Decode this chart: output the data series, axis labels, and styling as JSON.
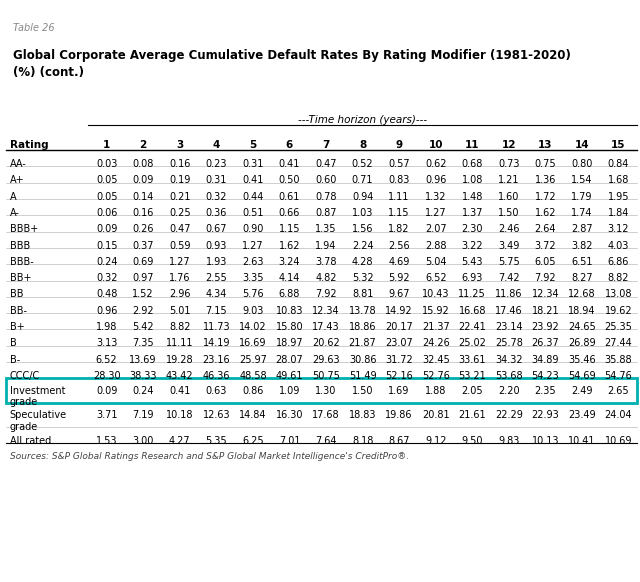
{
  "table_label": "Table 26",
  "title": "Global Corporate Average Cumulative Default Rates By Rating Modifier (1981-2020)\n(%) (cont.)",
  "time_horizon_label": "---Time horizon (years)---",
  "columns": [
    "Rating",
    "1",
    "2",
    "3",
    "4",
    "5",
    "6",
    "7",
    "8",
    "9",
    "10",
    "11",
    "12",
    "13",
    "14",
    "15"
  ],
  "rows": [
    [
      "AA-",
      "0.03",
      "0.08",
      "0.16",
      "0.23",
      "0.31",
      "0.41",
      "0.47",
      "0.52",
      "0.57",
      "0.62",
      "0.68",
      "0.73",
      "0.75",
      "0.80",
      "0.84"
    ],
    [
      "A+",
      "0.05",
      "0.09",
      "0.19",
      "0.31",
      "0.41",
      "0.50",
      "0.60",
      "0.71",
      "0.83",
      "0.96",
      "1.08",
      "1.21",
      "1.36",
      "1.54",
      "1.68"
    ],
    [
      "A",
      "0.05",
      "0.14",
      "0.21",
      "0.32",
      "0.44",
      "0.61",
      "0.78",
      "0.94",
      "1.11",
      "1.32",
      "1.48",
      "1.60",
      "1.72",
      "1.79",
      "1.95"
    ],
    [
      "A-",
      "0.06",
      "0.16",
      "0.25",
      "0.36",
      "0.51",
      "0.66",
      "0.87",
      "1.03",
      "1.15",
      "1.27",
      "1.37",
      "1.50",
      "1.62",
      "1.74",
      "1.84"
    ],
    [
      "BBB+",
      "0.09",
      "0.26",
      "0.47",
      "0.67",
      "0.90",
      "1.15",
      "1.35",
      "1.56",
      "1.82",
      "2.07",
      "2.30",
      "2.46",
      "2.64",
      "2.87",
      "3.12"
    ],
    [
      "BBB",
      "0.15",
      "0.37",
      "0.59",
      "0.93",
      "1.27",
      "1.62",
      "1.94",
      "2.24",
      "2.56",
      "2.88",
      "3.22",
      "3.49",
      "3.72",
      "3.82",
      "4.03"
    ],
    [
      "BBB-",
      "0.24",
      "0.69",
      "1.27",
      "1.93",
      "2.63",
      "3.24",
      "3.78",
      "4.28",
      "4.69",
      "5.04",
      "5.43",
      "5.75",
      "6.05",
      "6.51",
      "6.86"
    ],
    [
      "BB+",
      "0.32",
      "0.97",
      "1.76",
      "2.55",
      "3.35",
      "4.14",
      "4.82",
      "5.32",
      "5.92",
      "6.52",
      "6.93",
      "7.42",
      "7.92",
      "8.27",
      "8.82"
    ],
    [
      "BB",
      "0.48",
      "1.52",
      "2.96",
      "4.34",
      "5.76",
      "6.88",
      "7.92",
      "8.81",
      "9.67",
      "10.43",
      "11.25",
      "11.86",
      "12.34",
      "12.68",
      "13.08"
    ],
    [
      "BB-",
      "0.96",
      "2.92",
      "5.01",
      "7.15",
      "9.03",
      "10.83",
      "12.34",
      "13.78",
      "14.92",
      "15.92",
      "16.68",
      "17.46",
      "18.21",
      "18.94",
      "19.62"
    ],
    [
      "B+",
      "1.98",
      "5.42",
      "8.82",
      "11.73",
      "14.02",
      "15.80",
      "17.43",
      "18.86",
      "20.17",
      "21.37",
      "22.41",
      "23.14",
      "23.92",
      "24.65",
      "25.35"
    ],
    [
      "B",
      "3.13",
      "7.35",
      "11.11",
      "14.19",
      "16.69",
      "18.97",
      "20.62",
      "21.87",
      "23.07",
      "24.26",
      "25.02",
      "25.78",
      "26.37",
      "26.89",
      "27.44"
    ],
    [
      "B-",
      "6.52",
      "13.69",
      "19.28",
      "23.16",
      "25.97",
      "28.07",
      "29.63",
      "30.86",
      "31.72",
      "32.45",
      "33.61",
      "34.32",
      "34.89",
      "35.46",
      "35.88"
    ],
    [
      "CCC/C",
      "28.30",
      "38.33",
      "43.42",
      "46.36",
      "48.58",
      "49.61",
      "50.75",
      "51.49",
      "52.16",
      "52.76",
      "53.21",
      "53.68",
      "54.23",
      "54.69",
      "54.76"
    ],
    [
      "Investment\ngrade",
      "0.09",
      "0.24",
      "0.41",
      "0.63",
      "0.86",
      "1.09",
      "1.30",
      "1.50",
      "1.69",
      "1.88",
      "2.05",
      "2.20",
      "2.35",
      "2.49",
      "2.65"
    ],
    [
      "Speculative\ngrade",
      "3.71",
      "7.19",
      "10.18",
      "12.63",
      "14.84",
      "16.30",
      "17.68",
      "18.83",
      "19.86",
      "20.81",
      "21.61",
      "22.29",
      "22.93",
      "23.49",
      "24.04"
    ],
    [
      "All rated",
      "1.53",
      "3.00",
      "4.27",
      "5.35",
      "6.25",
      "7.01",
      "7.64",
      "8.18",
      "8.67",
      "9.12",
      "9.50",
      "9.83",
      "10.13",
      "10.41",
      "10.69"
    ]
  ],
  "highlight_row_index": 14,
  "highlight_color": "#00b0b0",
  "footer": "Sources: S&P Global Ratings Research and S&P Global Market Intelligence's CreditPro®.",
  "background_color": "#ffffff",
  "table_label_color": "#888888",
  "header_line_color": "#000000",
  "text_color": "#000000"
}
